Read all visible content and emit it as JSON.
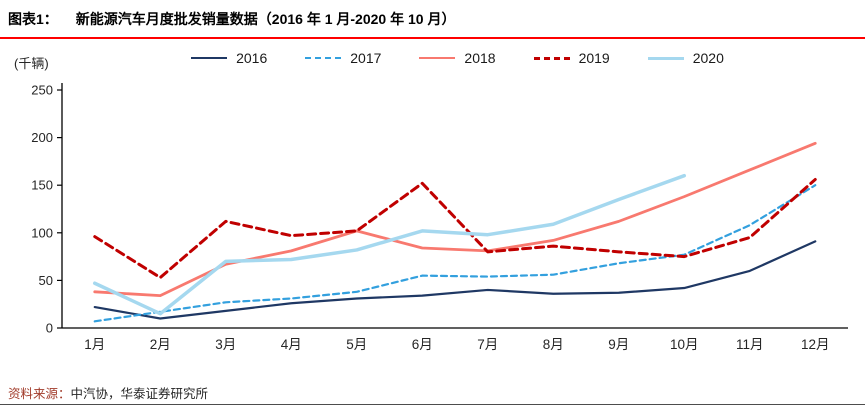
{
  "header": {
    "tag": "图表1：",
    "title": "新能源汽车月度批发销量数据（2016 年 1 月-2020 年 10 月）"
  },
  "chart_data": {
    "type": "line",
    "title": "新能源汽车月度批发销量数据（2016 年 1 月-2020 年 10 月）",
    "unit_label": "(千辆)",
    "xlabel": "",
    "ylabel": "千辆",
    "categories": [
      "1月",
      "2月",
      "3月",
      "4月",
      "5月",
      "6月",
      "7月",
      "8月",
      "9月",
      "10月",
      "11月",
      "12月"
    ],
    "ylim": [
      0,
      250
    ],
    "yticks": [
      0,
      50,
      100,
      150,
      200,
      250
    ],
    "grid": false,
    "legend_position": "top",
    "series": [
      {
        "name": "2016",
        "color": "#1F3864",
        "dash": null,
        "width": 2.2,
        "values": [
          22,
          10,
          18,
          26,
          31,
          34,
          40,
          36,
          37,
          42,
          60,
          91
        ]
      },
      {
        "name": "2017",
        "color": "#33A0DE",
        "dash": "6,4",
        "width": 2.2,
        "values": [
          7,
          17,
          27,
          31,
          38,
          55,
          54,
          56,
          68,
          77,
          108,
          150
        ]
      },
      {
        "name": "2018",
        "color": "#F8796F",
        "dash": null,
        "width": 2.8,
        "values": [
          38,
          34,
          67,
          81,
          102,
          84,
          81,
          92,
          112,
          138,
          166,
          194
        ]
      },
      {
        "name": "2019",
        "color": "#C00000",
        "dash": "8,5",
        "width": 3,
        "values": [
          96,
          53,
          112,
          97,
          102,
          152,
          80,
          86,
          80,
          75,
          95,
          156
        ]
      },
      {
        "name": "2020",
        "color": "#A5D8EF",
        "dash": null,
        "width": 3.5,
        "values": [
          47,
          15,
          70,
          72,
          82,
          102,
          98,
          109,
          135,
          160
        ]
      }
    ]
  },
  "footer": {
    "source_label": "资料来源：",
    "source_text": "中汽协，华泰证券研究所"
  },
  "colors": {
    "title_underline": "#FF0000",
    "axis": "#000000",
    "tick_text": "#262626",
    "source_label": "#A13B2A"
  }
}
